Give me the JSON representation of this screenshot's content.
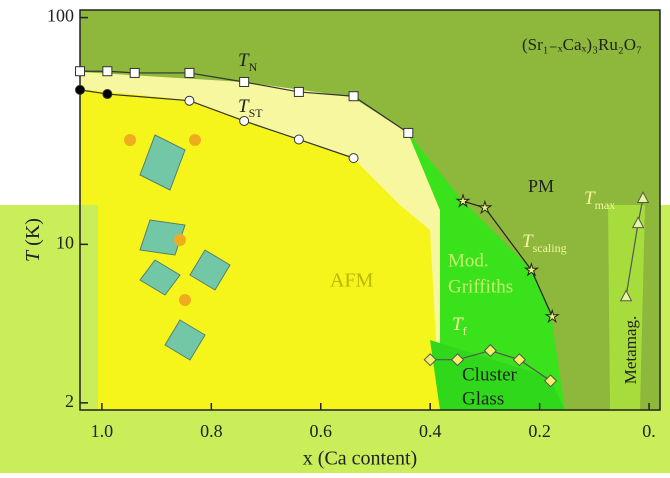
{
  "chart_data": {
    "type": "phase-diagram",
    "title": "(Sr₁₋ₓCaₓ)₃Ru₂O₇",
    "x_label": "x (Ca content)",
    "y_label": {
      "main": "T",
      "unit": " (K)"
    },
    "xlim": [
      1.04,
      -0.02
    ],
    "ylim": [
      1.86,
      108
    ],
    "y_log": true,
    "xticks": [
      {
        "value": 1,
        "label": "1.0"
      },
      0.8,
      0.6,
      0.4,
      0.2,
      {
        "value": 0,
        "label": "0."
      }
    ],
    "yticks": [
      100,
      10,
      2
    ],
    "series": [
      {
        "label_main": "T",
        "label_sub": "N",
        "marker": "square",
        "color": "#ffffff",
        "line": "#333333",
        "x": [
          1.04,
          0.99,
          0.94,
          0.84,
          0.74,
          0.64,
          0.54,
          0.44
        ],
        "values": [
          58,
          58,
          57,
          57,
          52,
          47,
          45,
          31
        ]
      },
      {
        "label_main": "T",
        "label_sub": "ST",
        "marker": "circle",
        "color": "#ffffff",
        "line": "#333333",
        "point_colors": [
          "#000000",
          "#000000",
          "#ffffff",
          "#ffffff",
          "#ffffff",
          "#ffffff"
        ],
        "x": [
          1.04,
          0.99,
          0.84,
          0.74,
          0.64,
          0.54
        ],
        "values": [
          48,
          46,
          43,
          35,
          29,
          24
        ]
      },
      {
        "label_main": "T",
        "label_sub": "scaling",
        "marker": "star",
        "color": "#f2f27a",
        "line": "#222222",
        "x": [
          0.34,
          0.3,
          0.215,
          0.177
        ],
        "values": [
          15.5,
          14.5,
          7.7,
          4.8
        ]
      },
      {
        "label_main": "T",
        "label_sub": "f",
        "marker": "diamond",
        "color": "#f5f06a",
        "line": "#555555",
        "x": [
          0.4,
          0.35,
          0.29,
          0.237,
          0.18
        ],
        "values": [
          3.1,
          3.1,
          3.4,
          3.1,
          2.5
        ]
      },
      {
        "label_main": "T",
        "label_sub": "max",
        "marker": "triangle",
        "color": "#e8f5a0",
        "line": "#555555",
        "x": [
          0.011,
          0.02,
          0.042
        ],
        "values": [
          16,
          12.4,
          5.9
        ]
      }
    ],
    "regions": [
      "PM",
      "AFM",
      "Mod.",
      "Griffiths",
      "Cluster",
      "Glass",
      "Metamag."
    ]
  }
}
